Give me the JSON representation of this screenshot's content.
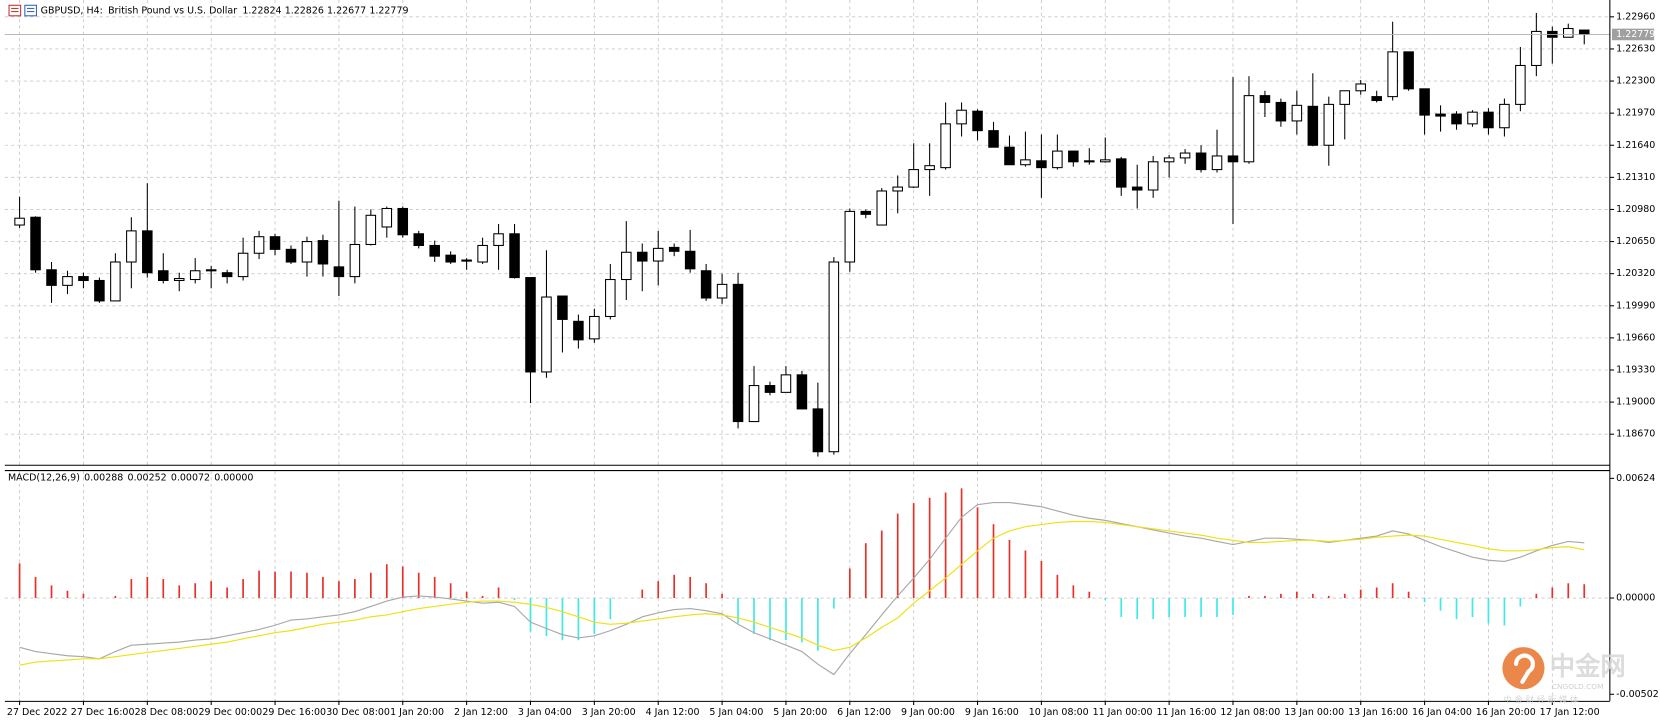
{
  "chart_data": [
    {
      "type": "candlestick",
      "symbol": "GBPUSD, H4:",
      "description": "British Pound vs U.S. Dollar",
      "categories": [
        "27 Dec 2022",
        null,
        null,
        null,
        "27 Dec 16:00",
        null,
        null,
        null,
        "28 Dec 08:00",
        null,
        null,
        null,
        "29 Dec 00:00",
        null,
        null,
        null,
        "29 Dec 16:00",
        null,
        null,
        null,
        "30 Dec 08:00",
        null,
        null,
        null,
        "1 Jan 20:00",
        null,
        null,
        null,
        "2 Jan 12:00",
        null,
        null,
        null,
        "3 Jan 04:00",
        null,
        null,
        null,
        "3 Jan 20:00",
        null,
        null,
        null,
        "4 Jan 12:00",
        null,
        null,
        null,
        "5 Jan 04:00",
        null,
        null,
        null,
        "5 Jan 20:00",
        null,
        null,
        null,
        "6 Jan 12:00",
        null,
        null,
        null,
        "9 Jan 00:00",
        null,
        null,
        null,
        "9 Jan 16:00",
        null,
        null,
        null,
        "10 Jan 08:00",
        null,
        null,
        null,
        "11 Jan 00:00",
        null,
        null,
        null,
        "11 Jan 16:00",
        null,
        null,
        null,
        "12 Jan 08:00",
        null,
        null,
        null,
        "13 Jan 00:00",
        null,
        null,
        null,
        "13 Jan 16:00",
        null,
        null,
        null,
        "16 Jan 04:00",
        null,
        null,
        null,
        "16 Jan 20:00",
        null,
        null,
        null,
        "17 Jan 12:00",
        null,
        null
      ],
      "open": [
        1.2082,
        1.209,
        1.2036,
        1.202,
        1.2029,
        1.2025,
        1.2004,
        1.2044,
        1.2076,
        1.2035,
        1.2025,
        1.2026,
        1.2035,
        1.2033,
        1.2029,
        1.2053,
        1.207,
        1.2057,
        1.2044,
        1.2066,
        1.2039,
        1.2029,
        1.2062,
        1.208,
        1.2099,
        1.2073,
        1.2061,
        1.2051,
        1.2045,
        1.2044,
        1.2061,
        1.2073,
        1.2028,
        1.1931,
        1.2009,
        1.1983,
        1.1965,
        1.1988,
        1.2026,
        1.2054,
        1.2045,
        1.2059,
        1.2055,
        1.2035,
        1.2007,
        1.2021,
        1.188,
        1.1917,
        1.191,
        1.1928,
        1.1893,
        1.1849,
        1.2044,
        1.2096,
        1.2082,
        1.2117,
        1.2121,
        1.2139,
        1.2141,
        1.2186,
        1.2199,
        1.2179,
        1.2162,
        1.2144,
        1.2148,
        1.2141,
        1.2158,
        1.2147,
        1.2147,
        1.215,
        1.2121,
        1.2118,
        1.2147,
        1.2151,
        1.2156,
        1.2139,
        1.2153,
        1.2147,
        1.2215,
        1.2208,
        1.2189,
        1.2204,
        1.2164,
        1.2206,
        1.222,
        1.2214,
        1.2214,
        1.226,
        1.2222,
        1.2196,
        1.2196,
        1.2186,
        1.2198,
        1.2182,
        1.2206,
        1.2246,
        1.2281,
        1.2275,
        1.22824
      ],
      "high": [
        1.2111,
        1.2091,
        1.2044,
        1.2035,
        1.2033,
        1.2028,
        1.2053,
        1.209,
        1.2125,
        1.2053,
        1.2033,
        1.2048,
        1.204,
        1.2036,
        1.2069,
        1.2076,
        1.2073,
        1.2061,
        1.207,
        1.2072,
        1.2107,
        1.2101,
        1.2098,
        1.2101,
        1.2101,
        1.2076,
        1.2066,
        1.2055,
        1.2048,
        1.2069,
        1.2083,
        1.2083,
        1.2028,
        1.2056,
        1.2009,
        1.199,
        1.1996,
        1.2042,
        1.2086,
        1.2063,
        1.2076,
        1.2063,
        1.2077,
        1.2042,
        1.2032,
        1.2033,
        1.1937,
        1.1921,
        1.1937,
        1.1932,
        1.192,
        1.2049,
        1.2099,
        1.2098,
        1.212,
        1.2133,
        1.2166,
        1.2166,
        1.2208,
        1.2208,
        1.2201,
        1.2188,
        1.2174,
        1.2178,
        1.2175,
        1.2175,
        1.2158,
        1.2161,
        1.2172,
        1.2152,
        1.2144,
        1.2153,
        1.2154,
        1.216,
        1.2164,
        1.218,
        1.2234,
        1.2235,
        1.222,
        1.2212,
        1.222,
        1.2238,
        1.2214,
        1.222,
        1.2231,
        1.222,
        1.2291,
        1.226,
        1.2222,
        1.2205,
        1.2199,
        1.22,
        1.2202,
        1.2212,
        1.2265,
        1.23,
        1.2286,
        1.2289,
        1.22826
      ],
      "low": [
        1.2079,
        1.2033,
        1.2002,
        1.2011,
        1.2017,
        1.2002,
        1.2004,
        1.2017,
        1.2028,
        1.2022,
        1.2014,
        1.2022,
        1.2017,
        1.2022,
        1.2025,
        1.2047,
        1.2051,
        1.2042,
        1.2029,
        1.2029,
        1.2009,
        1.2022,
        1.2061,
        1.2069,
        1.2069,
        1.2058,
        1.2044,
        1.2042,
        1.2036,
        1.2042,
        1.2036,
        1.2027,
        1.1899,
        1.1925,
        1.1951,
        1.1955,
        1.1961,
        1.1985,
        1.2005,
        1.2014,
        1.202,
        1.205,
        1.2033,
        1.2004,
        1.2001,
        1.1873,
        1.188,
        1.1907,
        1.191,
        1.1893,
        1.1844,
        1.1846,
        1.2034,
        1.2089,
        1.2082,
        1.2094,
        1.212,
        1.2112,
        1.2139,
        1.2173,
        1.2169,
        1.2162,
        1.2144,
        1.2142,
        1.211,
        1.2139,
        1.2142,
        1.2144,
        1.2146,
        1.2112,
        1.2099,
        1.211,
        1.2131,
        1.2145,
        1.2136,
        1.2136,
        1.2083,
        1.2145,
        1.2193,
        1.2183,
        1.2175,
        1.2163,
        1.2143,
        1.217,
        1.2216,
        1.2208,
        1.221,
        1.222,
        1.2175,
        1.2178,
        1.218,
        1.2183,
        1.2175,
        1.2173,
        1.2199,
        1.2235,
        1.2248,
        1.2275,
        1.22677
      ],
      "close": [
        1.2089,
        1.2036,
        1.202,
        1.2029,
        1.2025,
        1.2004,
        1.2044,
        1.2076,
        1.2033,
        1.2025,
        1.2027,
        1.2035,
        1.2036,
        1.2029,
        1.2053,
        1.207,
        1.2057,
        1.2044,
        1.2065,
        1.2042,
        1.2029,
        1.2062,
        1.2092,
        1.2099,
        1.2072,
        1.2061,
        1.205,
        1.2044,
        1.2046,
        1.2061,
        1.2073,
        1.2028,
        1.1931,
        1.2008,
        1.1985,
        1.1964,
        1.1988,
        1.2026,
        1.2054,
        1.2045,
        1.2058,
        1.2055,
        1.2037,
        1.2007,
        1.2021,
        1.188,
        1.1917,
        1.191,
        1.1928,
        1.1893,
        1.1849,
        1.2044,
        1.2096,
        1.2093,
        1.2117,
        1.2121,
        1.2139,
        1.2143,
        1.2186,
        1.22,
        1.2179,
        1.2162,
        1.2144,
        1.2149,
        1.2141,
        1.2158,
        1.2147,
        1.2148,
        1.2149,
        1.2121,
        1.2118,
        1.2147,
        1.2151,
        1.2156,
        1.2139,
        1.2153,
        1.2147,
        1.2215,
        1.2208,
        1.2189,
        1.2205,
        1.2164,
        1.2206,
        1.222,
        1.2227,
        1.221,
        1.226,
        1.2222,
        1.2195,
        1.2194,
        1.2186,
        1.2198,
        1.2182,
        1.2206,
        1.2246,
        1.2281,
        1.2275,
        1.2284,
        1.22779
      ],
      "bull_color": "#ffffff",
      "bear_color": "#000000",
      "wick_color": "#000000",
      "ylim": [
        1.18356,
        1.23133
      ],
      "yticks": [
        {
          "value": 1.2296,
          "label": "1.22960"
        },
        {
          "value": 1.2263,
          "label": "1.22630"
        },
        {
          "value": 1.223,
          "label": "1.22300"
        },
        {
          "value": 1.2197,
          "label": "1.21970"
        },
        {
          "value": 1.2164,
          "label": "1.21640"
        },
        {
          "value": 1.2131,
          "label": "1.21310"
        },
        {
          "value": 1.2098,
          "label": "1.20980"
        },
        {
          "value": 1.2065,
          "label": "1.20650"
        },
        {
          "value": 1.2032,
          "label": "1.20320"
        },
        {
          "value": 1.1999,
          "label": "1.19990"
        },
        {
          "value": 1.1966,
          "label": "1.19660"
        },
        {
          "value": 1.1933,
          "label": "1.19330"
        },
        {
          "value": 1.19,
          "label": "1.19000"
        },
        {
          "value": 1.1867,
          "label": "1.18670"
        }
      ],
      "grid": true,
      "current_price": 1.22779
    },
    {
      "type": "macd",
      "title": "MACD(12,26,9)",
      "extra_buffer": {
        "value": 0,
        "label": "0.00000"
      },
      "ylim": [
        -0.00536,
        0.00662
      ],
      "yticks": [
        0.00624,
        {
          "value": 0,
          "label": "0.00000"
        },
        -0.00502
      ],
      "grid": true,
      "series": [
        {
          "kind": "histogram",
          "color": "#e8302a",
          "negative_color": "#40e8e8",
          "values": [
            0.00181,
            0.0011,
            0.00066,
            0.00038,
            0.00022,
            0,
            0.00011,
            0.00099,
            0.0011,
            0.00099,
            0.00066,
            0.00077,
            0.00088,
            0.00055,
            0.00099,
            0.00143,
            0.00138,
            0.00138,
            0.00132,
            0.0011,
            0.00088,
            0.00099,
            0.00132,
            0.00176,
            0.00165,
            0.00132,
            0.0011,
            0.00077,
            0.00033,
            0.00011,
            0.00055,
            -0.00011,
            -0.00176,
            -0.00198,
            -0.0022,
            -0.0022,
            -0.00187,
            -0.0011,
            0,
            0.00044,
            0.00088,
            0.00121,
            0.0011,
            0.00077,
            0.00022,
            -0.00132,
            -0.00187,
            -0.0022,
            -0.0022,
            -0.00231,
            -0.00275,
            -0.00055,
            0.00154,
            0.00286,
            0.00352,
            0.0044,
            0.00495,
            0.00523,
            0.0055,
            0.00572,
            0.00473,
            0.00385,
            0.00303,
            0.00248,
            0.00193,
            0.00121,
            0.00066,
            0.00033,
            -0.00011,
            -0.00099,
            -0.0011,
            -0.0011,
            -0.00099,
            -0.00099,
            -0.00099,
            -0.00099,
            -0.00088,
            0.00011,
            0.00011,
            0.00022,
            0.00033,
            0.00022,
            0.00011,
            0.00022,
            0.00044,
            0.00055,
            0.00077,
            0.00033,
            -0.00022,
            -0.00066,
            -0.0011,
            -0.00099,
            -0.00132,
            -0.00143,
            -0.00044,
            0.00022,
            0.00055,
            0.00077,
            0.00072
          ]
        },
        {
          "kind": "line",
          "color": "#a8a8a8",
          "values": [
            -0.00257,
            -0.00279,
            -0.0029,
            -0.00301,
            -0.00306,
            -0.00317,
            -0.00279,
            -0.00246,
            -0.00241,
            -0.00235,
            -0.0023,
            -0.00219,
            -0.00213,
            -0.00197,
            -0.00181,
            -0.00164,
            -0.00142,
            -0.00115,
            -0.00109,
            -0.00098,
            -0.00088,
            -0.00071,
            -0.00044,
            -0.00016,
            5e-05,
            0.00011,
            5e-05,
            -5e-05,
            -0.00016,
            -0.00027,
            -0.00022,
            -0.00044,
            -0.00126,
            -0.00159,
            -0.00191,
            -0.00208,
            -0.00197,
            -0.0017,
            -0.00137,
            -0.00098,
            -0.00077,
            -0.0006,
            -0.00055,
            -0.00066,
            -0.00082,
            -0.00137,
            -0.00181,
            -0.00213,
            -0.00246,
            -0.00279,
            -0.00345,
            -0.00399,
            -0.0029,
            -0.00191,
            -0.00088,
            0.00011,
            0.00104,
            0.00202,
            0.00312,
            0.00421,
            0.00487,
            0.00498,
            0.00498,
            0.00487,
            0.00476,
            0.00454,
            0.00432,
            0.00416,
            0.00405,
            0.00388,
            0.00372,
            0.00355,
            0.00339,
            0.00323,
            0.00312,
            0.00295,
            0.00279,
            0.00295,
            0.00312,
            0.00312,
            0.00306,
            0.00301,
            0.0029,
            0.00301,
            0.00312,
            0.00323,
            0.0035,
            0.00334,
            0.00301,
            0.00268,
            0.00241,
            0.00213,
            0.00197,
            0.00191,
            0.00213,
            0.00246,
            0.00274,
            0.00295,
            0.00288
          ]
        },
        {
          "kind": "line",
          "color": "#f0e010",
          "values": [
            -0.0035,
            -0.00334,
            -0.00328,
            -0.00323,
            -0.00317,
            -0.00317,
            -0.00306,
            -0.00295,
            -0.00284,
            -0.00274,
            -0.00263,
            -0.00252,
            -0.00241,
            -0.0023,
            -0.00213,
            -0.00197,
            -0.00181,
            -0.0017,
            -0.00153,
            -0.00137,
            -0.00126,
            -0.00115,
            -0.00098,
            -0.00088,
            -0.00071,
            -0.00055,
            -0.00044,
            -0.00033,
            -0.00022,
            -0.00016,
            -0.00016,
            -0.00022,
            -0.00033,
            -0.00049,
            -0.00071,
            -0.00098,
            -0.00126,
            -0.00137,
            -0.00131,
            -0.0012,
            -0.00109,
            -0.00098,
            -0.00088,
            -0.00082,
            -0.00088,
            -0.00104,
            -0.00126,
            -0.00153,
            -0.00181,
            -0.00208,
            -0.00246,
            -0.00274,
            -0.00257,
            -0.00208,
            -0.00153,
            -0.00104,
            -0.00027,
            0.00038,
            0.00104,
            0.00175,
            0.00246,
            0.00312,
            0.0035,
            0.00372,
            0.00383,
            0.00394,
            0.00399,
            0.00399,
            0.00394,
            0.00383,
            0.00372,
            0.00361,
            0.0035,
            0.00339,
            0.00328,
            0.00312,
            0.00301,
            0.0029,
            0.0029,
            0.00295,
            0.00301,
            0.00301,
            0.00295,
            0.00301,
            0.00306,
            0.00317,
            0.00323,
            0.00328,
            0.00323,
            0.00306,
            0.0029,
            0.00274,
            0.00257,
            0.00246,
            0.00246,
            0.00252,
            0.00263,
            0.00268,
            0.00252
          ]
        }
      ]
    }
  ],
  "watermark": {
    "name": "中金网",
    "domain": "CNGOLD.COM",
    "slogan": "中 金 财 经 新 媒 体"
  }
}
